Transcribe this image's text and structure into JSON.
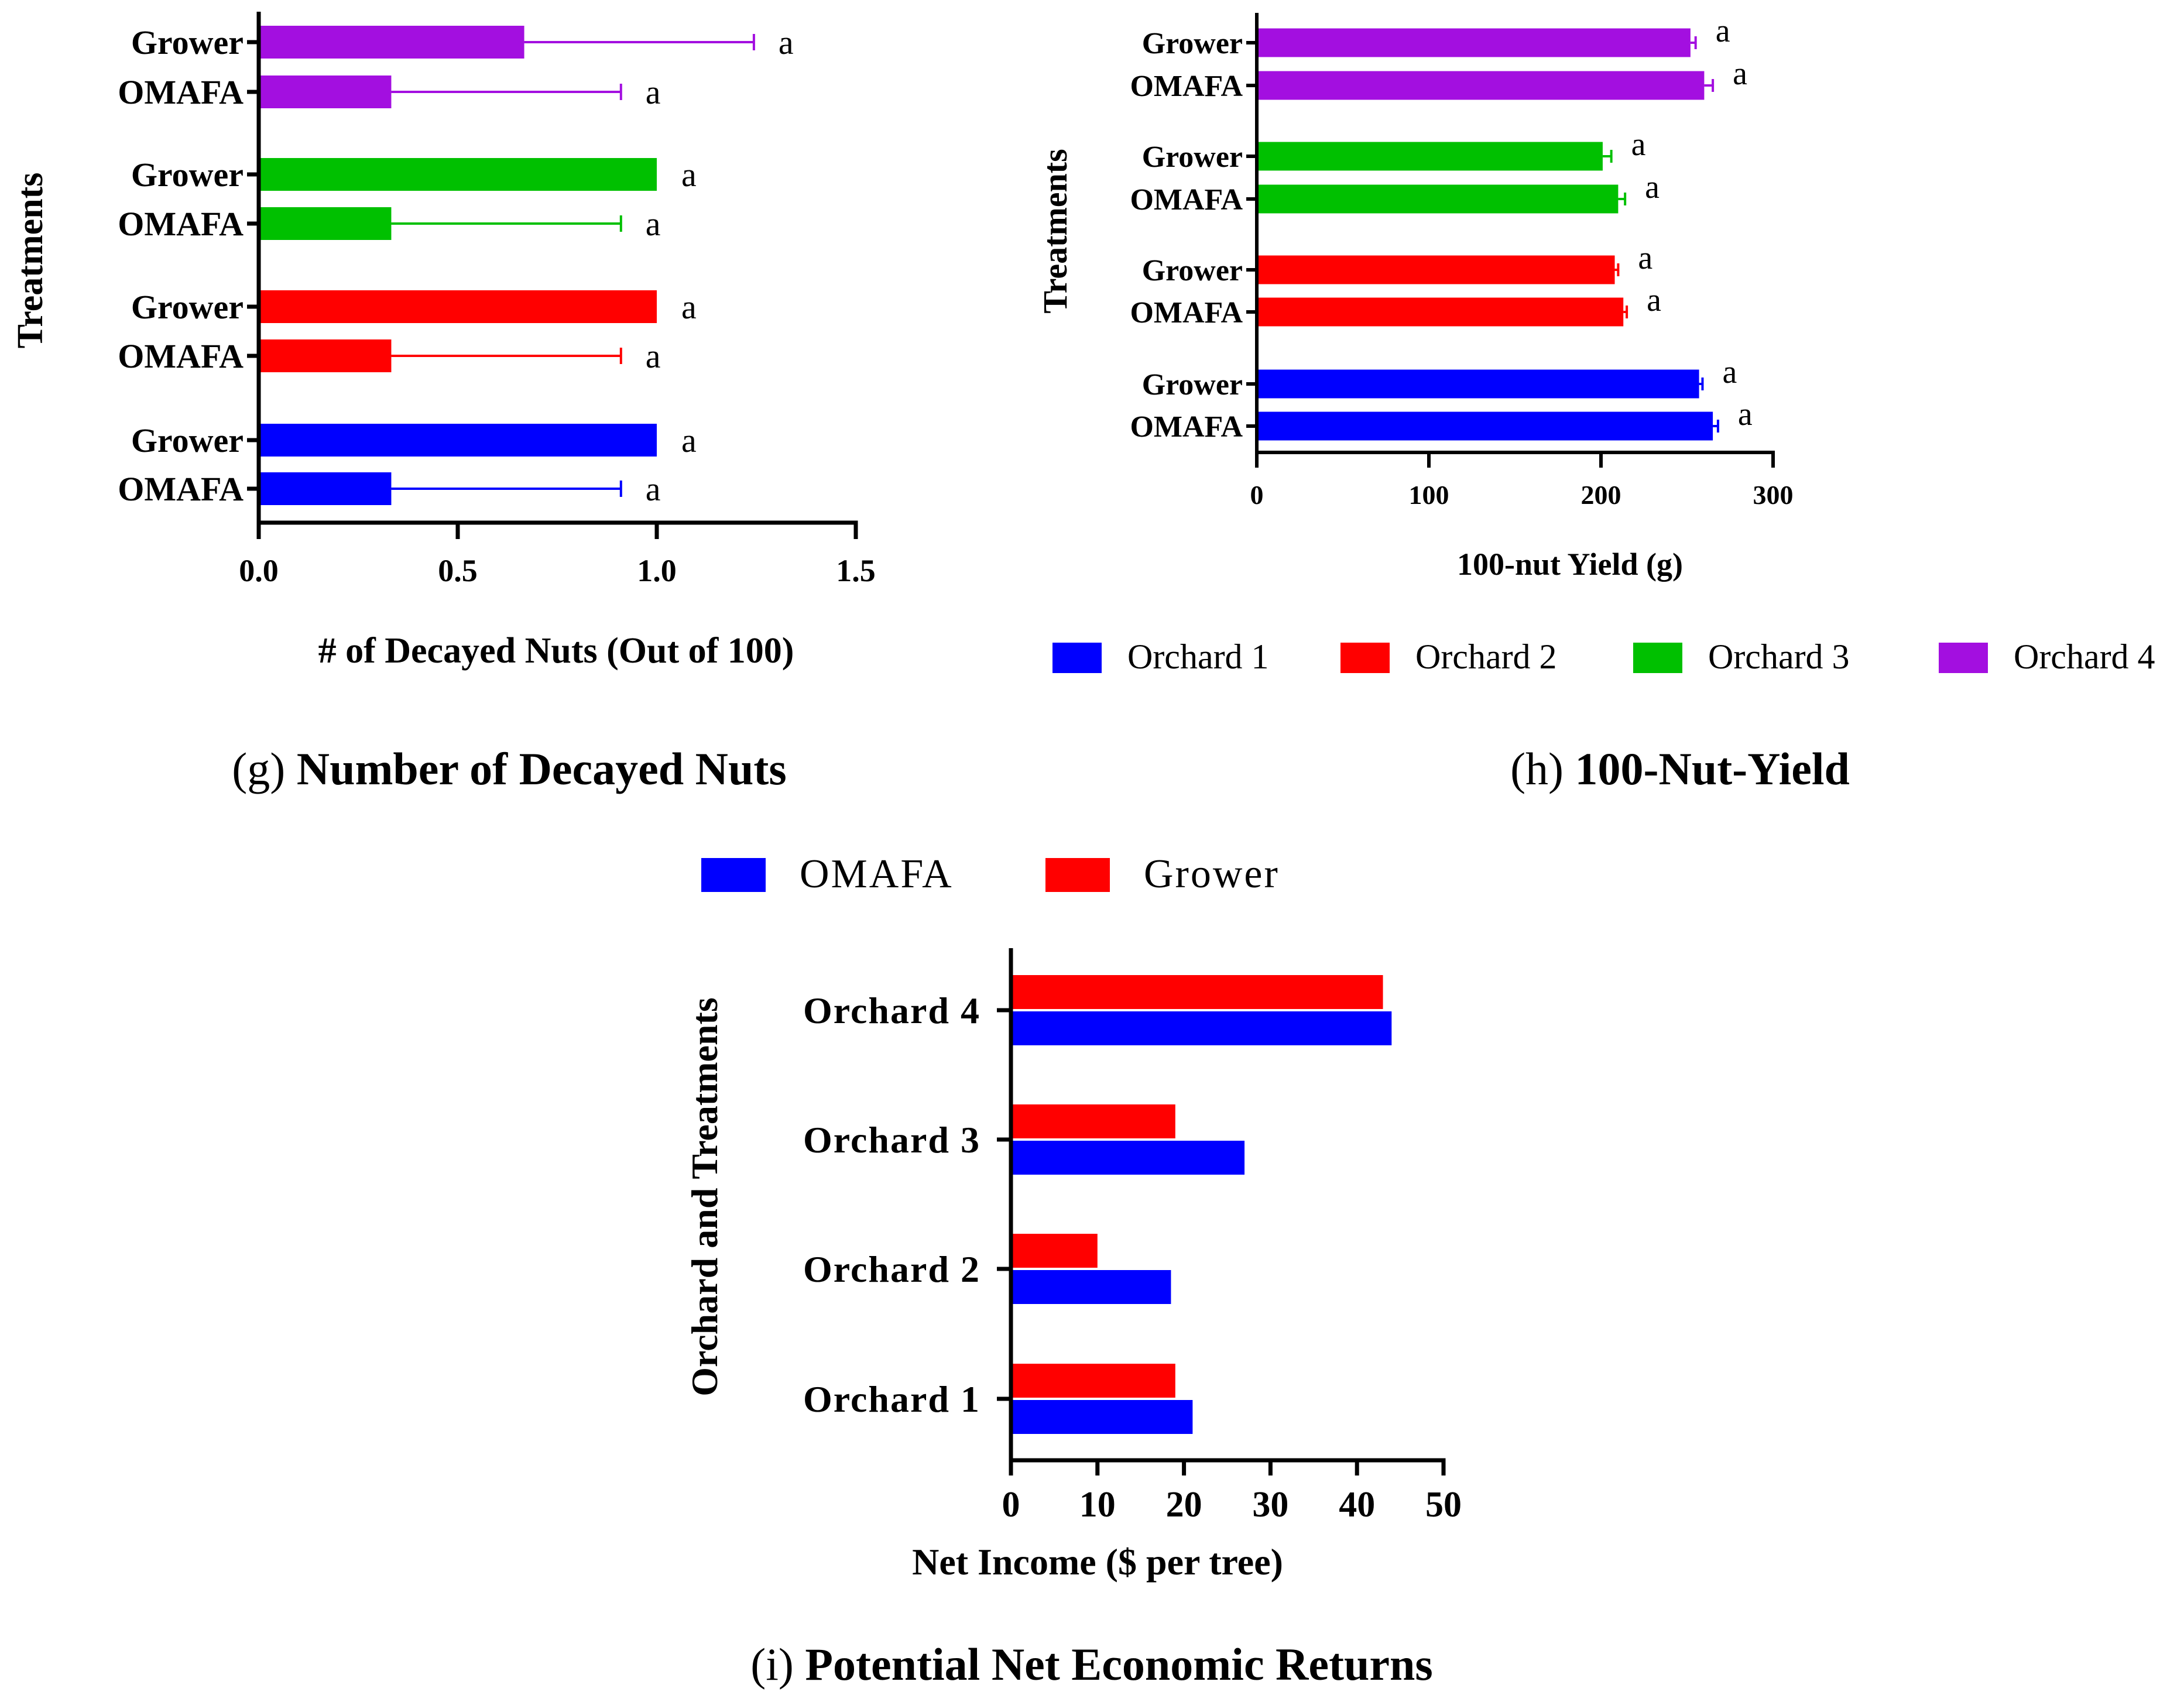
{
  "chart_data": [
    {
      "id": "g",
      "type": "bar",
      "orientation": "horizontal",
      "caption_letter": "(g)",
      "caption_title": "Number of Decayed Nuts",
      "xlabel": "# of Decayed Nuts (Out of 100)",
      "ylabel": "Treatments",
      "xlim": [
        0,
        1.5
      ],
      "xticks": [
        "0.0",
        "0.5",
        "1.0",
        "1.5"
      ],
      "xtick_values": [
        0,
        0.5,
        1.0,
        1.5
      ],
      "groups": [
        {
          "orchard": "Orchard 4",
          "color": "#A30FE0",
          "bars": [
            {
              "label": "Grower",
              "value": 0.667,
              "error": 0.577,
              "letter": "a"
            },
            {
              "label": "OMAFA",
              "value": 0.333,
              "error": 0.577,
              "letter": "a"
            }
          ]
        },
        {
          "orchard": "Orchard 3",
          "color": "#00C000",
          "bars": [
            {
              "label": "Grower",
              "value": 1.0,
              "error": 0,
              "letter": "a"
            },
            {
              "label": "OMAFA",
              "value": 0.333,
              "error": 0.577,
              "letter": "a"
            }
          ]
        },
        {
          "orchard": "Orchard 2",
          "color": "#FF0000",
          "bars": [
            {
              "label": "Grower",
              "value": 1.0,
              "error": 0,
              "letter": "a"
            },
            {
              "label": "OMAFA",
              "value": 0.333,
              "error": 0.577,
              "letter": "a"
            }
          ]
        },
        {
          "orchard": "Orchard 1",
          "color": "#0000FF",
          "bars": [
            {
              "label": "Grower",
              "value": 1.0,
              "error": 0,
              "letter": "a"
            },
            {
              "label": "OMAFA",
              "value": 0.333,
              "error": 0.577,
              "letter": "a"
            }
          ]
        }
      ]
    },
    {
      "id": "h",
      "type": "bar",
      "orientation": "horizontal",
      "caption_letter": "(h)",
      "caption_title": "100-Nut-Yield",
      "xlabel": "100-nut Yield (g)",
      "ylabel": "Treatments",
      "xlim": [
        0,
        300
      ],
      "xticks": [
        "0",
        "100",
        "200",
        "300"
      ],
      "xtick_values": [
        0,
        100,
        200,
        300
      ],
      "legend": [
        {
          "label": "Orchard 1",
          "color": "#0000FF"
        },
        {
          "label": "Orchard 2",
          "color": "#FF0000"
        },
        {
          "label": "Orchard 3",
          "color": "#00C000"
        },
        {
          "label": "Orchard 4",
          "color": "#A30FE0"
        }
      ],
      "groups": [
        {
          "orchard": "Orchard 4",
          "color": "#A30FE0",
          "bars": [
            {
              "label": "Grower",
              "value": 252,
              "error": 3,
              "letter": "a"
            },
            {
              "label": "OMAFA",
              "value": 260,
              "error": 5,
              "letter": "a"
            }
          ]
        },
        {
          "orchard": "Orchard 3",
          "color": "#00C000",
          "bars": [
            {
              "label": "Grower",
              "value": 201,
              "error": 5,
              "letter": "a"
            },
            {
              "label": "OMAFA",
              "value": 210,
              "error": 4,
              "letter": "a"
            }
          ]
        },
        {
          "orchard": "Orchard 2",
          "color": "#FF0000",
          "bars": [
            {
              "label": "Grower",
              "value": 208,
              "error": 2,
              "letter": "a"
            },
            {
              "label": "OMAFA",
              "value": 213,
              "error": 2,
              "letter": "a"
            }
          ]
        },
        {
          "orchard": "Orchard 1",
          "color": "#0000FF",
          "bars": [
            {
              "label": "Grower",
              "value": 257,
              "error": 2,
              "letter": "a"
            },
            {
              "label": "OMAFA",
              "value": 265,
              "error": 3,
              "letter": "a"
            }
          ]
        }
      ]
    },
    {
      "id": "i",
      "type": "bar",
      "orientation": "horizontal",
      "caption_letter": "(i)",
      "caption_title": "Potential Net Economic Returns",
      "xlabel": "Net Income ($ per tree)",
      "ylabel": "Orchard and Treatments",
      "xlim": [
        0,
        50
      ],
      "xticks": [
        "0",
        "10",
        "20",
        "30",
        "40",
        "50"
      ],
      "xtick_values": [
        0,
        10,
        20,
        30,
        40,
        50
      ],
      "legend": [
        {
          "label": "OMAFA",
          "color": "#0000FF"
        },
        {
          "label": "Grower",
          "color": "#FF0000"
        }
      ],
      "categories": [
        "Orchard 4",
        "Orchard 3",
        "Orchard 2",
        "Orchard 1"
      ],
      "series": [
        {
          "name": "Grower",
          "color": "#FF0000",
          "values": [
            43,
            19,
            10,
            19
          ]
        },
        {
          "name": "OMAFA",
          "color": "#0000FF",
          "values": [
            44,
            27,
            18.5,
            21
          ]
        }
      ]
    }
  ]
}
